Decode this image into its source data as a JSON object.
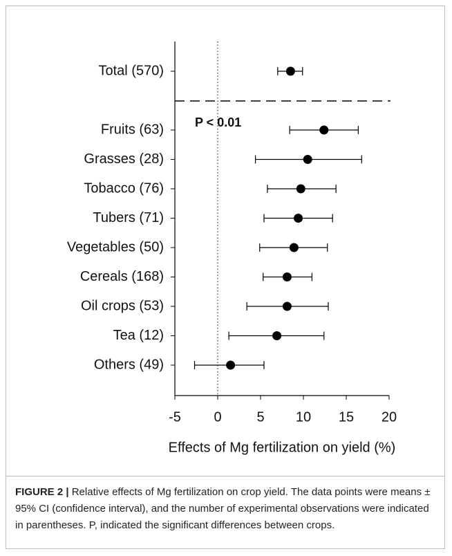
{
  "chart_data": {
    "type": "forest",
    "categories": [
      "Total (570)",
      "Fruits (63)",
      "Grasses (28)",
      "Tobacco (76)",
      "Tubers (71)",
      "Vegetables (50)",
      "Cereals (168)",
      "Oil crops (53)",
      "Tea (12)",
      "Others (49)"
    ],
    "series": [
      {
        "name": "Mean",
        "color": "#000000",
        "values": [
          8.5,
          12.4,
          10.5,
          9.7,
          9.4,
          8.9,
          8.1,
          8.1,
          6.9,
          1.5
        ],
        "ci_low": [
          7.0,
          8.4,
          4.4,
          5.8,
          5.4,
          4.9,
          5.3,
          3.4,
          1.3,
          -2.7
        ],
        "ci_high": [
          9.9,
          16.4,
          16.8,
          13.8,
          13.4,
          12.8,
          11.0,
          12.9,
          12.4,
          5.4
        ]
      }
    ],
    "xlim": [
      -5,
      20
    ],
    "xticks": [
      -5,
      0,
      5,
      10,
      15,
      20
    ],
    "xlabel": "Effects of Mg fertilization on yield (%)",
    "annotation": "P < 0.01",
    "reference_line": 0
  },
  "caption_label": "FIGURE 2 |",
  "caption": "Relative effects of Mg fertilization on crop yield. The data points were means ± 95% CI (confidence interval), and the number of experimental observations were indicated in parentheses. P, indicated the significant differences between crops."
}
